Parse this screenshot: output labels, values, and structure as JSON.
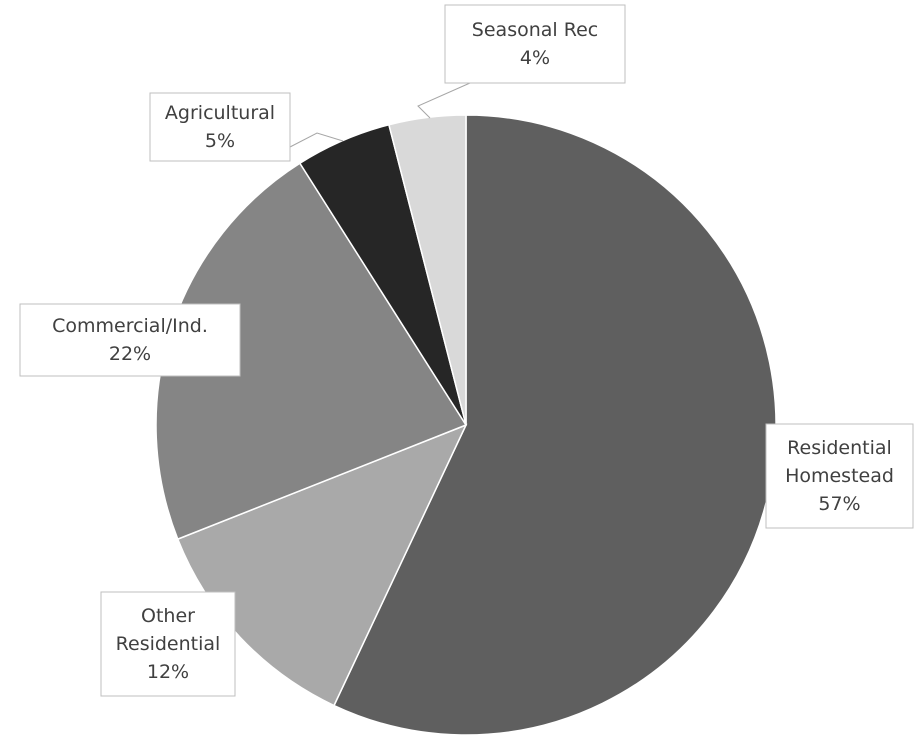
{
  "chart_data": {
    "type": "pie",
    "title": "",
    "categories": [
      "Residential Homestead",
      "Other Residential",
      "Commercial/Ind.",
      "Agricultural",
      "Seasonal Rec"
    ],
    "values": [
      57,
      12,
      22,
      5,
      4
    ],
    "unit": "%",
    "start_angle_deg": 0,
    "direction": "clockwise",
    "legend": "none",
    "slices": [
      {
        "name": "Residential Homestead",
        "value": 57,
        "label_lines": [
          "Residential",
          "Homestead"
        ],
        "percent_label": "57%",
        "color": "#5f5f5f"
      },
      {
        "name": "Other Residential",
        "value": 12,
        "label_lines": [
          "Other",
          "Residential"
        ],
        "percent_label": "12%",
        "color": "#a9a9a9"
      },
      {
        "name": "Commercial/Ind.",
        "value": 22,
        "label_lines": [
          "Commercial/Ind."
        ],
        "percent_label": "22%",
        "color": "#858585"
      },
      {
        "name": "Agricultural",
        "value": 5,
        "label_lines": [
          "Agricultural"
        ],
        "percent_label": "5%",
        "color": "#262626"
      },
      {
        "name": "Seasonal Rec",
        "value": 4,
        "label_lines": [
          "Seasonal Rec"
        ],
        "percent_label": "4%",
        "color": "#d9d9d9"
      }
    ]
  }
}
